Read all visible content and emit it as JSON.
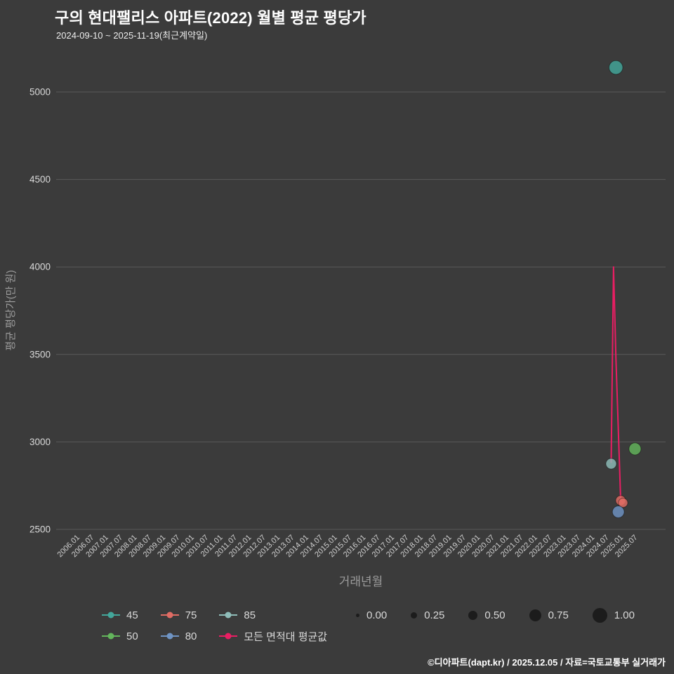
{
  "header": {
    "title": "구의 현대팰리스 아파트(2022) 월별 평균 평당가",
    "subtitle": "2024-09-10 ~ 2025-11-19(최근계약일)"
  },
  "footer": {
    "credit": "©디아파트(dapt.kr) / 2025.12.05 / 자료=국토교통부 실거래가"
  },
  "colors": {
    "background": "#3b3b3b",
    "gridline": "#5a5a5a",
    "tick_text": "#cfcfcf",
    "axis_title_text": "#9c9c9c",
    "legend_text": "#d9d9d9",
    "size_dot": "#1c1c1c",
    "title_text": "#ffffff"
  },
  "chart_data": {
    "type": "scatter",
    "title": "구의 현대팰리스 아파트(2022) 월별 평균 평당가",
    "subtitle": "2024-09-10 ~ 2025-11-19(최근계약일)",
    "xlabel": "거래년월",
    "ylabel": "평균 평당가(만 원)",
    "grid": true,
    "legend_position": "bottom",
    "ylim": [
      2400,
      5260
    ],
    "yticks": [
      2500,
      3000,
      3500,
      4000,
      4500,
      5000
    ],
    "x_range": [
      "2006.01",
      "2025.11"
    ],
    "xticks": [
      "2006.01",
      "2006.07",
      "2007.01",
      "2007.07",
      "2008.01",
      "2008.07",
      "2009.01",
      "2009.07",
      "2010.01",
      "2010.07",
      "2011.01",
      "2011.07",
      "2012.01",
      "2012.07",
      "2013.01",
      "2013.07",
      "2014.01",
      "2014.07",
      "2015.01",
      "2015.07",
      "2016.01",
      "2016.07",
      "2017.01",
      "2017.07",
      "2018.01",
      "2018.07",
      "2019.01",
      "2019.07",
      "2020.01",
      "2020.07",
      "2021.01",
      "2021.07",
      "2022.01",
      "2022.07",
      "2023.01",
      "2023.07",
      "2024.01",
      "2024.07",
      "2025.01",
      "2025.07"
    ],
    "series": [
      {
        "name": "45",
        "type": "scatter",
        "color": "#43a79b",
        "points": [
          {
            "x": "2024.11",
            "y": 5140,
            "size": 0.75
          }
        ]
      },
      {
        "name": "50",
        "type": "scatter",
        "color": "#63b55c",
        "points": [
          {
            "x": "2025.07",
            "y": 2960,
            "size": 0.62
          }
        ]
      },
      {
        "name": "75",
        "type": "scatter",
        "color": "#e06c64",
        "points": [
          {
            "x": "2025.01",
            "y": 2665,
            "size": 0.45
          },
          {
            "x": "2025.02",
            "y": 2652,
            "size": 0.4
          }
        ]
      },
      {
        "name": "80",
        "type": "scatter",
        "color": "#6f94c4",
        "points": [
          {
            "x": "2024.12",
            "y": 2600,
            "size": 0.6
          }
        ]
      },
      {
        "name": "85",
        "type": "scatter",
        "color": "#8fbdb9",
        "points": [
          {
            "x": "2024.09",
            "y": 2875,
            "size": 0.5
          }
        ]
      },
      {
        "name": "모든 면적대 평균값",
        "type": "line",
        "color": "#e91e63",
        "points": [
          {
            "x": "2024.09",
            "y": 2880
          },
          {
            "x": "2024.10",
            "y": 4000
          },
          {
            "x": "2024.11",
            "y": 3480
          },
          {
            "x": "2025.01",
            "y": 2665
          },
          {
            "x": "2025.02",
            "y": 2652
          }
        ]
      }
    ],
    "size_legend": {
      "labels": [
        "0.00",
        "0.25",
        "0.50",
        "0.75",
        "1.00"
      ],
      "values": [
        0,
        0.25,
        0.5,
        0.75,
        1.0
      ]
    }
  }
}
